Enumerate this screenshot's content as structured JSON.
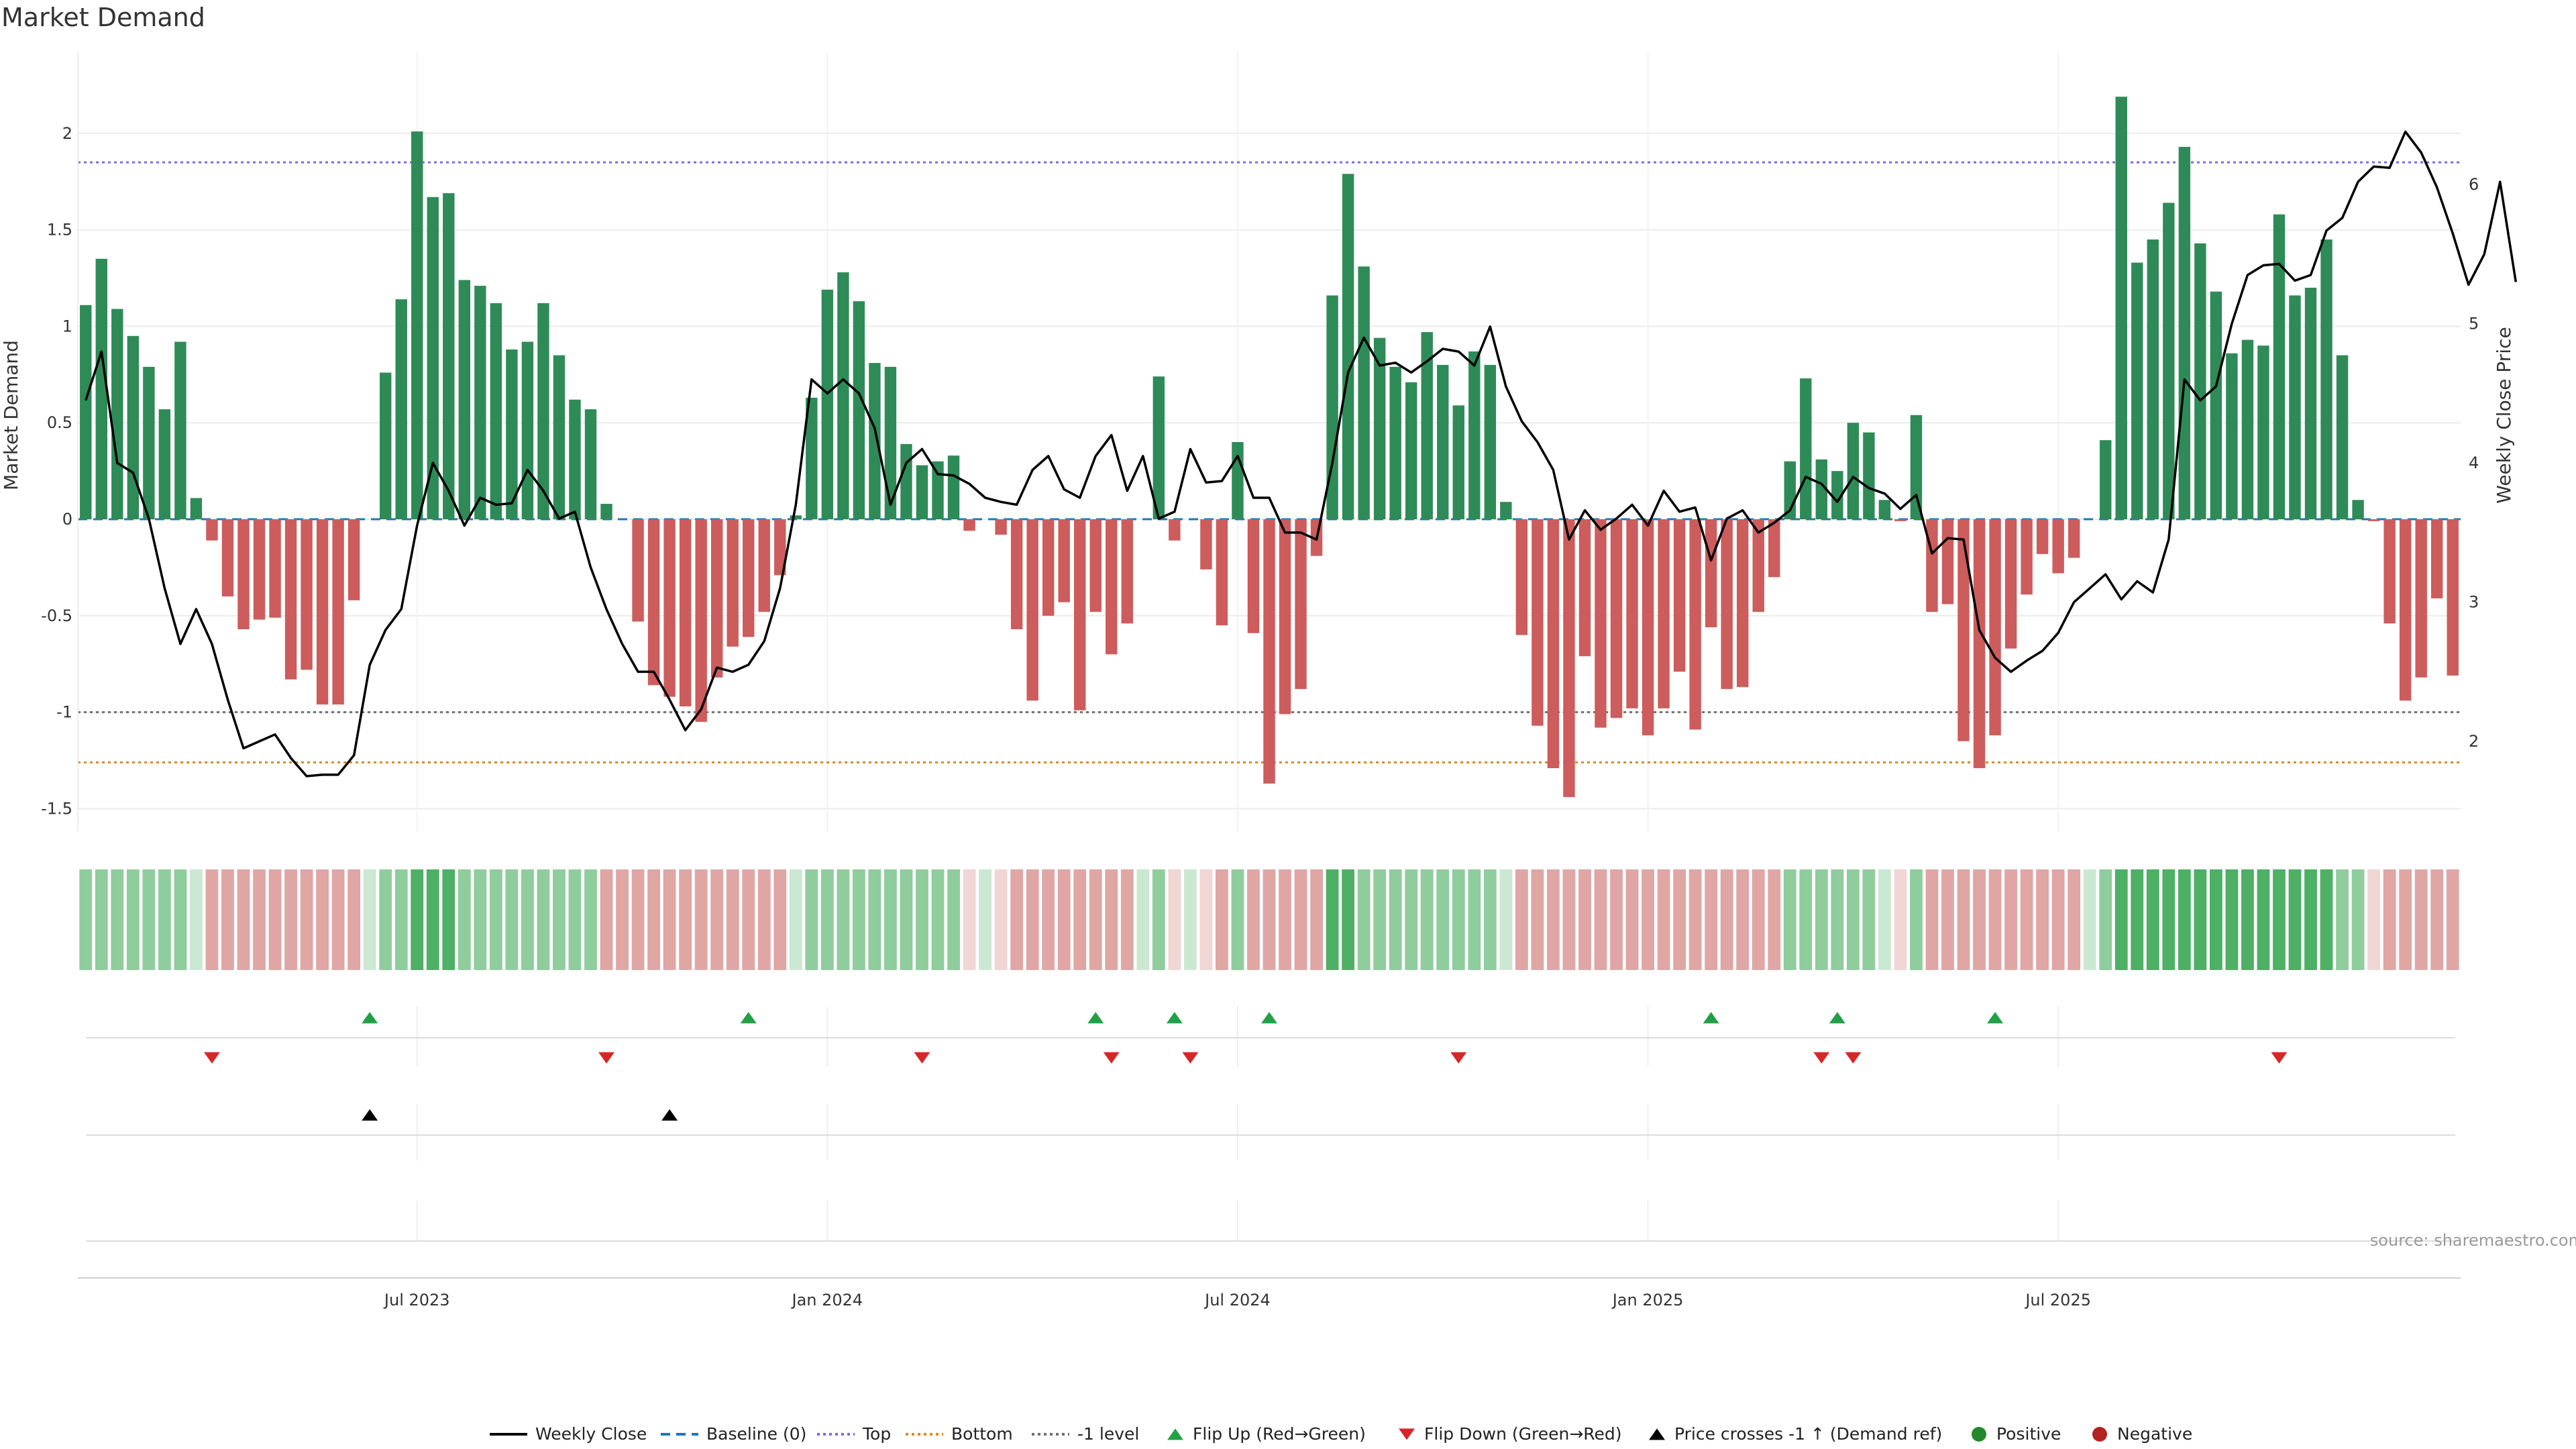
{
  "chart_data": {
    "type": "bar",
    "title": "Market Demand",
    "ylabel": "Market Demand",
    "ylabel_right": "Weekly Close Price",
    "ylim": [
      -1.62,
      2.42
    ],
    "ylim_right": [
      1.35,
      6.95
    ],
    "yticks": [
      "2",
      "1.5",
      "1",
      "0.5",
      "0",
      "-0.5",
      "-1",
      "-1.5"
    ],
    "yticks_right": [
      "6",
      "5",
      "4",
      "3",
      "2"
    ],
    "x_tick_labels": [
      "Jul 2023",
      "Jan 2024",
      "Jul 2024",
      "Jan 2025",
      "Jul 2025"
    ],
    "reference_lines": {
      "top": 1.85,
      "bottom": -1.26,
      "minus_one": -1.0,
      "baseline": 0
    },
    "colors": {
      "positive": "#2e8b57",
      "negative": "#cd5c5c",
      "close": "#000000",
      "top": "#7b68ee",
      "bottom": "#e08a1e",
      "level": "#707070",
      "baseline": "#1f77b4",
      "flip_up": "#22a046",
      "flip_down": "#d62728",
      "cross": "#000000",
      "pos_dot": "#22882a",
      "neg_dot": "#b22222"
    },
    "demand": [
      1.11,
      1.35,
      1.09,
      0.95,
      0.79,
      0.57,
      0.92,
      0.11,
      -0.11,
      -0.4,
      -0.57,
      -0.52,
      -0.51,
      -0.83,
      -0.78,
      -0.96,
      -0.96,
      -0.42,
      0,
      0.76,
      1.14,
      2.01,
      1.67,
      1.69,
      1.24,
      1.21,
      1.12,
      0.88,
      0.92,
      1.12,
      0.85,
      0.62,
      0.57,
      0.08,
      0,
      -0.53,
      -0.86,
      -0.92,
      -0.97,
      -1.05,
      -0.82,
      -0.66,
      -0.61,
      -0.48,
      -0.29,
      0.02,
      0.63,
      1.19,
      1.28,
      1.13,
      0.81,
      0.79,
      0.39,
      0.28,
      0.3,
      0.33,
      -0.06,
      0,
      -0.08,
      -0.57,
      -0.94,
      -0.5,
      -0.43,
      -0.99,
      -0.48,
      -0.7,
      -0.54,
      0,
      0.74,
      -0.11,
      0,
      -0.26,
      -0.55,
      0.4,
      -0.59,
      -1.37,
      -1.01,
      -0.88,
      -0.19,
      1.16,
      1.79,
      1.31,
      0.94,
      0.79,
      0.71,
      0.97,
      0.8,
      0.59,
      0.87,
      0.8,
      0.09,
      -0.6,
      -1.07,
      -1.29,
      -1.44,
      -0.71,
      -1.08,
      -1.03,
      -0.98,
      -1.12,
      -0.98,
      -0.79,
      -1.09,
      -0.56,
      -0.88,
      -0.87,
      -0.48,
      -0.3,
      0.3,
      0.73,
      0.31,
      0.25,
      0.5,
      0.45,
      0.1,
      -0.01,
      0.54,
      -0.48,
      -0.44,
      -1.15,
      -1.29,
      -1.12,
      -0.67,
      -0.39,
      -0.18,
      -0.28,
      -0.2,
      0,
      0.41,
      2.19,
      1.33,
      1.45,
      1.64,
      1.93,
      1.43,
      1.18,
      0.86,
      0.93,
      0.9,
      1.58,
      1.16,
      1.2,
      1.45,
      0.85,
      0.1,
      -0.01,
      -0.54,
      -0.94,
      -0.82,
      -0.41,
      -0.81
    ],
    "close": [
      4.45,
      4.8,
      4.0,
      3.93,
      3.6,
      3.1,
      2.7,
      2.95,
      2.7,
      2.3,
      1.95,
      2.0,
      2.05,
      1.88,
      1.75,
      1.76,
      1.76,
      1.9,
      2.55,
      2.8,
      2.95,
      3.55,
      4.0,
      3.8,
      3.55,
      3.75,
      3.7,
      3.71,
      3.95,
      3.8,
      3.6,
      3.65,
      3.25,
      2.95,
      2.7,
      2.5,
      2.5,
      2.3,
      2.08,
      2.23,
      2.53,
      2.5,
      2.55,
      2.72,
      3.1,
      3.7,
      4.6,
      4.5,
      4.6,
      4.5,
      4.25,
      3.7,
      4.0,
      4.1,
      3.92,
      3.91,
      3.85,
      3.75,
      3.72,
      3.7,
      3.95,
      4.05,
      3.81,
      3.75,
      4.05,
      4.2,
      3.8,
      4.05,
      3.6,
      3.65,
      4.1,
      3.86,
      3.87,
      4.05,
      3.75,
      3.75,
      3.5,
      3.5,
      3.45,
      4.0,
      4.65,
      4.9,
      4.7,
      4.72,
      4.65,
      4.73,
      4.82,
      4.8,
      4.7,
      4.98,
      4.55,
      4.3,
      4.15,
      3.95,
      3.45,
      3.66,
      3.52,
      3.6,
      3.7,
      3.55,
      3.8,
      3.65,
      3.68,
      3.3,
      3.6,
      3.66,
      3.5,
      3.57,
      3.66,
      3.9,
      3.85,
      3.72,
      3.9,
      3.82,
      3.78,
      3.67,
      3.77,
      3.35,
      3.46,
      3.45,
      2.8,
      2.6,
      2.5,
      2.58,
      2.65,
      2.78,
      3.0,
      3.1,
      3.2,
      3.02,
      3.15,
      3.07,
      3.45,
      4.6,
      4.45,
      4.55,
      5.0,
      5.35,
      5.42,
      5.43,
      5.31,
      5.35,
      5.67,
      5.76,
      6.02,
      6.13,
      6.12,
      6.38,
      6.23,
      5.98,
      5.65,
      5.28,
      5.5,
      6.02,
      5.3
    ],
    "strip": [
      1,
      1,
      1,
      1,
      1,
      1,
      1,
      3,
      2,
      2,
      2,
      2,
      2,
      2,
      2,
      2,
      2,
      2,
      3,
      1,
      1,
      0,
      0,
      0,
      1,
      1,
      1,
      1,
      1,
      1,
      1,
      1,
      1,
      2,
      2,
      2,
      2,
      2,
      2,
      2,
      2,
      2,
      2,
      2,
      2,
      3,
      1,
      1,
      1,
      1,
      1,
      1,
      1,
      1,
      1,
      1,
      3,
      3,
      3,
      2,
      2,
      2,
      2,
      2,
      2,
      2,
      2,
      3,
      1,
      3,
      3,
      3,
      2,
      1,
      2,
      2,
      2,
      2,
      2,
      0,
      0,
      1,
      1,
      1,
      1,
      1,
      1,
      1,
      1,
      1,
      3,
      2,
      2,
      2,
      2,
      2,
      2,
      2,
      2,
      2,
      2,
      2,
      2,
      2,
      2,
      2,
      2,
      2,
      1,
      1,
      1,
      1,
      1,
      1,
      3,
      3,
      1,
      2,
      2,
      2,
      2,
      2,
      2,
      2,
      2,
      2,
      2,
      3,
      1,
      0,
      0,
      0,
      0,
      0,
      0,
      0,
      0,
      0,
      0,
      0,
      0,
      0,
      0,
      1,
      1,
      3,
      2,
      2,
      2,
      2,
      2
    ],
    "flip_up_weeks": [
      18,
      42,
      64,
      69,
      75,
      103,
      111,
      121
    ],
    "flip_down_weeks": [
      8,
      33,
      53,
      65,
      70,
      87,
      110,
      112,
      139
    ],
    "cross_weeks": [
      18,
      37
    ],
    "legend": [
      "Weekly Close",
      "Baseline (0)",
      "Top",
      "Bottom",
      "-1 level",
      "Flip Up (Red→Green)",
      "Flip Down (Green→Red)",
      "Price crosses -1 ↑ (Demand ref)",
      "Positive",
      "Negative"
    ],
    "source": "source: sharemaestro.com"
  }
}
